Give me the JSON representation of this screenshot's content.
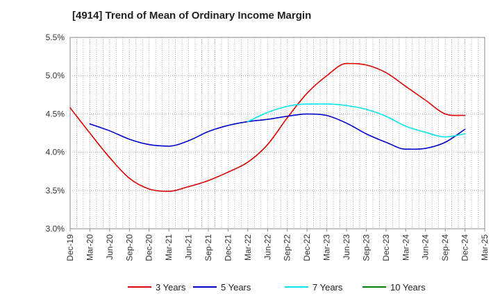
{
  "chart_data": {
    "type": "line",
    "title": "[4914]  Trend of Mean of Ordinary Income Margin",
    "xlabel": "",
    "ylabel": "",
    "x_tick_labels": [
      "Dec-19",
      "Mar-20",
      "Jun-20",
      "Sep-20",
      "Dec-20",
      "Mar-21",
      "Jun-21",
      "Sep-21",
      "Dec-21",
      "Mar-22",
      "Jun-22",
      "Sep-22",
      "Dec-22",
      "Mar-23",
      "Jun-23",
      "Sep-23",
      "Dec-23",
      "Mar-24",
      "Jun-24",
      "Sep-24",
      "Dec-24",
      "Mar-25"
    ],
    "y_tick_labels": [
      "3.0%",
      "3.5%",
      "4.0%",
      "4.5%",
      "5.0%",
      "5.5%"
    ],
    "ylim": [
      3.0,
      5.5
    ],
    "y_unit": "%",
    "grid": true,
    "legend_position": "bottom",
    "series": [
      {
        "name": "3 Years",
        "color": "#dd0000",
        "x": [
          "Dec-19",
          "Mar-20",
          "Jun-20",
          "Sep-20",
          "Dec-20",
          "Mar-21",
          "Jun-21",
          "Sep-21",
          "Dec-21",
          "Mar-22",
          "Jun-22",
          "Sep-22",
          "Dec-22",
          "Mar-23",
          "Jun-23",
          "Sep-23",
          "Dec-23",
          "Mar-24",
          "Jun-24",
          "Sep-24",
          "Dec-24"
        ],
        "values": [
          4.58,
          4.25,
          3.93,
          3.66,
          3.52,
          3.49,
          3.55,
          3.63,
          3.74,
          3.87,
          4.1,
          4.45,
          4.77,
          5.0,
          5.16,
          5.14,
          5.04,
          4.86,
          4.68,
          4.5,
          4.48
        ]
      },
      {
        "name": "5 Years",
        "color": "#0000cc",
        "x": [
          "Mar-20",
          "Jun-20",
          "Sep-20",
          "Dec-20",
          "Mar-21",
          "Jun-21",
          "Sep-21",
          "Dec-21",
          "Mar-22",
          "Jun-22",
          "Sep-22",
          "Dec-22",
          "Mar-23",
          "Jun-23",
          "Sep-23",
          "Dec-23",
          "Mar-24",
          "Jun-24",
          "Sep-24",
          "Dec-24"
        ],
        "values": [
          4.37,
          4.28,
          4.17,
          4.1,
          4.08,
          4.15,
          4.27,
          4.35,
          4.4,
          4.43,
          4.47,
          4.5,
          4.48,
          4.38,
          4.24,
          4.13,
          4.04,
          4.05,
          4.13,
          4.3
        ]
      },
      {
        "name": "7 Years",
        "color": "#00e5ee",
        "x": [
          "Mar-22",
          "Jun-22",
          "Sep-22",
          "Dec-22",
          "Mar-23",
          "Jun-23",
          "Sep-23",
          "Dec-23",
          "Mar-24",
          "Jun-24",
          "Sep-24",
          "Dec-24"
        ],
        "values": [
          4.4,
          4.52,
          4.6,
          4.63,
          4.63,
          4.61,
          4.56,
          4.47,
          4.34,
          4.26,
          4.2,
          4.24
        ]
      },
      {
        "name": "10 Years",
        "color": "#008000",
        "x": [],
        "values": []
      }
    ]
  }
}
